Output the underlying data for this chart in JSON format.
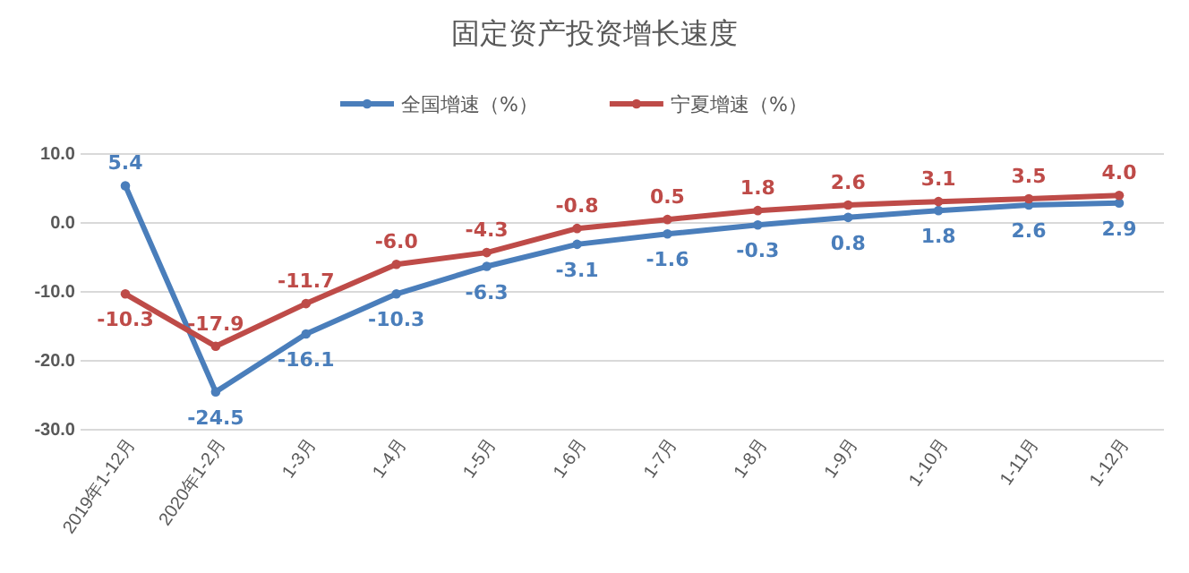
{
  "chart_data": {
    "type": "line",
    "title": "固定资产投资增长速度",
    "categories": [
      "2019年1-12月",
      "2020年1-2月",
      "1-3月",
      "1-4月",
      "1-5月",
      "1-6月",
      "1-7月",
      "1-8月",
      "1-9月",
      "1-10月",
      "1-11月",
      "1-12月"
    ],
    "series": [
      {
        "name": "全国增速（%）",
        "color": "#4a7ebb",
        "values": [
          5.4,
          -24.5,
          -16.1,
          -10.3,
          -6.3,
          -3.1,
          -1.6,
          -0.3,
          0.8,
          1.8,
          2.6,
          2.9
        ],
        "value_labels": [
          "5.4",
          "-24.5",
          "-16.1",
          "-10.3",
          "-6.3",
          "-3.1",
          "-1.6",
          "-0.3",
          "0.8",
          "1.8",
          "2.6",
          "2.9"
        ]
      },
      {
        "name": "宁夏增速（%）",
        "color": "#be4b48",
        "values": [
          -10.3,
          -17.9,
          -11.7,
          -6.0,
          -4.3,
          -0.8,
          0.5,
          1.8,
          2.6,
          3.1,
          3.5,
          4.0
        ],
        "value_labels": [
          "-10.3",
          "-17.9",
          "-11.7",
          "-6.0",
          "-4.3",
          "-0.8",
          "0.5",
          "1.8",
          "2.6",
          "3.1",
          "3.5",
          "4.0"
        ]
      }
    ],
    "ylim": [
      -30,
      10
    ],
    "yticks": [
      {
        "value": -30,
        "label": "-30.0"
      },
      {
        "value": -20,
        "label": "-20.0"
      },
      {
        "value": -10,
        "label": "-10.0"
      },
      {
        "value": 0,
        "label": "0.0"
      },
      {
        "value": 10,
        "label": "10.0"
      }
    ],
    "grid": "y",
    "legend": "top",
    "marker": "circle",
    "line_style": "solid"
  }
}
